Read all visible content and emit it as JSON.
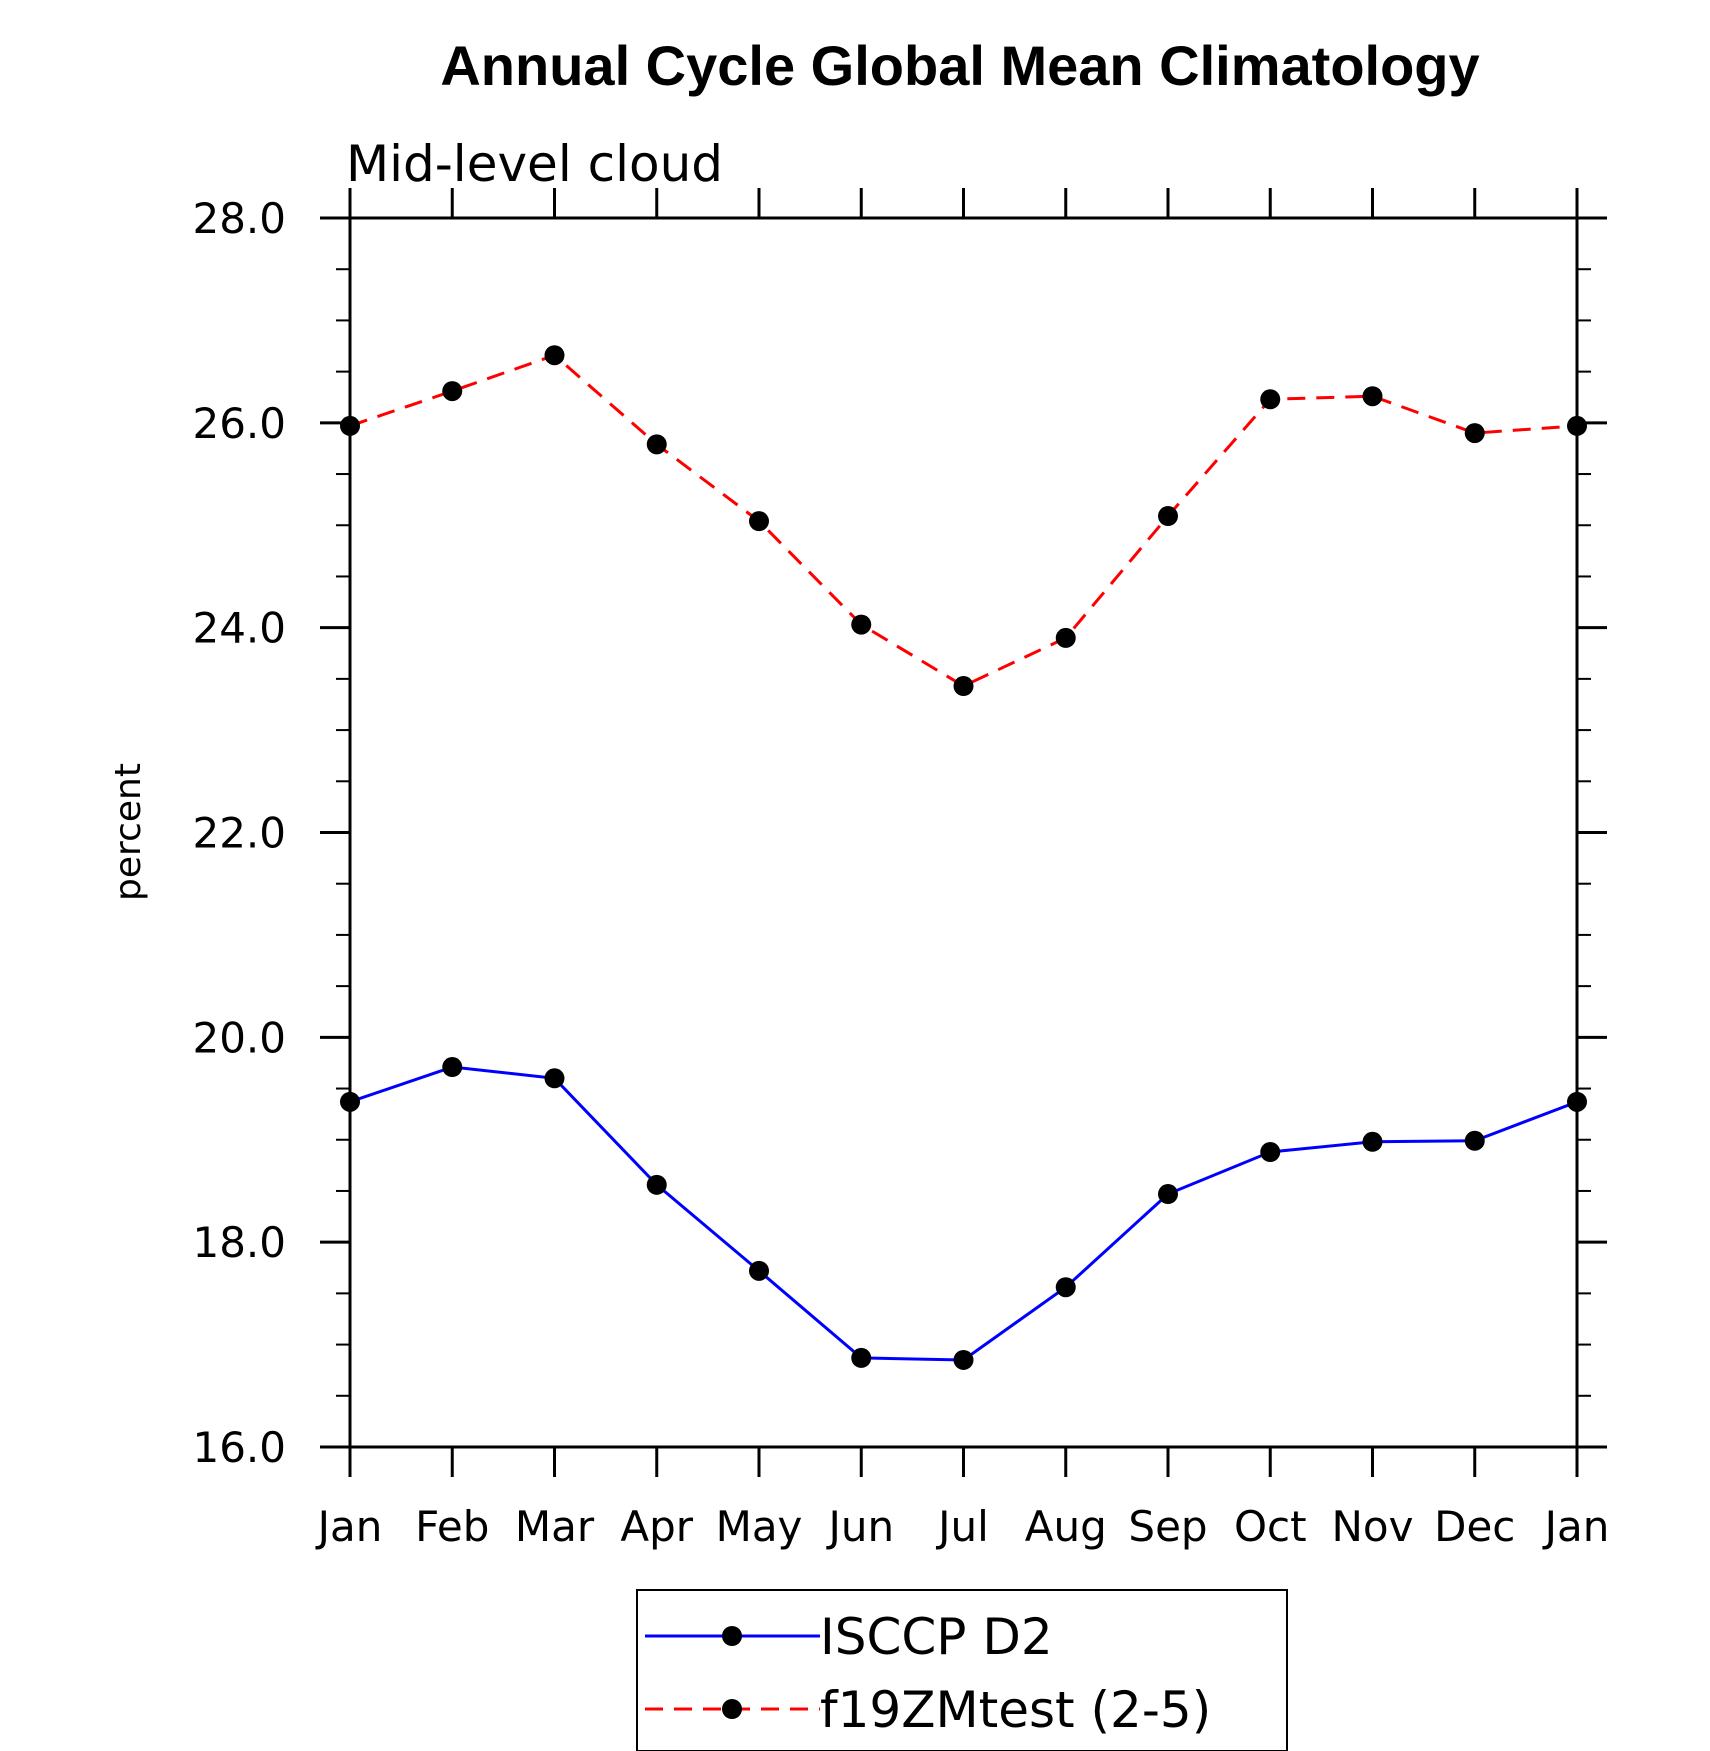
{
  "chart_data": {
    "type": "line",
    "title": "Annual Cycle Global Mean Climatology",
    "subtitle": "Mid-level cloud",
    "ylabel": "percent",
    "xlabel": "",
    "categories": [
      "Jan",
      "Feb",
      "Mar",
      "Apr",
      "May",
      "Jun",
      "Jul",
      "Aug",
      "Sep",
      "Oct",
      "Nov",
      "Dec",
      "Jan"
    ],
    "ylim": [
      16.0,
      28.0
    ],
    "y_ticks": [
      "16.0",
      "18.0",
      "20.0",
      "22.0",
      "24.0",
      "26.0",
      "28.0"
    ],
    "y_minor_step": 0.5,
    "grid": false,
    "legend_position": "bottom-center",
    "series": [
      {
        "name": "ISCCP D2",
        "color": "#0000ff",
        "line_style": "solid",
        "marker": "circle",
        "values": [
          19.37,
          19.71,
          19.6,
          18.56,
          17.72,
          16.87,
          16.85,
          17.56,
          18.47,
          18.88,
          18.98,
          18.99,
          19.37
        ]
      },
      {
        "name": "f19ZMtest (2-5)",
        "color": "#ff0000",
        "line_style": "dashed",
        "marker": "circle",
        "values": [
          25.97,
          26.31,
          26.66,
          25.79,
          25.04,
          24.03,
          23.43,
          23.9,
          25.09,
          26.23,
          26.26,
          25.9,
          25.97
        ]
      }
    ]
  }
}
